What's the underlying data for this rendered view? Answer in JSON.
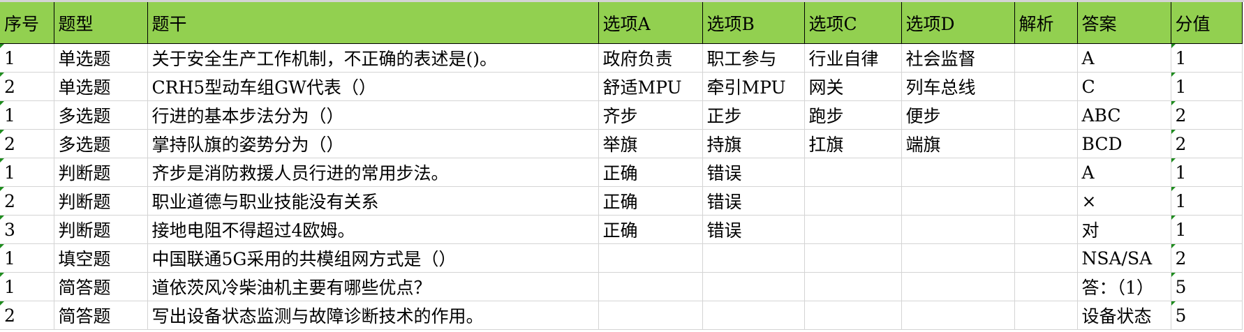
{
  "headers": [
    "序号",
    "题型",
    "题干",
    "选项A",
    "选项B",
    "选项C",
    "选项D",
    "解析",
    "答案",
    "分值"
  ],
  "rows": [
    [
      "1",
      "单选题",
      "关于安全生产工作机制，不正确的表述是()。",
      "政府负责",
      "职工参与",
      "行业自律",
      "社会监督",
      "",
      "A",
      "1"
    ],
    [
      "2",
      "单选题",
      "CRH5型动车组GW代表（）",
      "舒适MPU",
      "牵引MPU",
      "网关",
      "列车总线",
      "",
      "C",
      "1"
    ],
    [
      "1",
      "多选题",
      "行进的基本步法分为（）",
      "齐步",
      "正步",
      "跑步",
      "便步",
      "",
      "ABC",
      "2"
    ],
    [
      "2",
      "多选题",
      "掌持队旗的姿势分为（）",
      "举旗",
      "持旗",
      "扛旗",
      "端旗",
      "",
      "BCD",
      "2"
    ],
    [
      "1",
      "判断题",
      "齐步是消防救援人员行进的常用步法。",
      "正确",
      "错误",
      "",
      "",
      "",
      "A",
      "1"
    ],
    [
      "2",
      "判断题",
      "职业道德与职业技能没有关系",
      "正确",
      "错误",
      "",
      "",
      "",
      "×",
      "1"
    ],
    [
      "3",
      "判断题",
      "接地电阻不得超过4欧姆。",
      "正确",
      "错误",
      "",
      "",
      "",
      "对",
      "1"
    ],
    [
      "1",
      "填空题",
      "中国联通5G采用的共模组网方式是（）",
      "",
      "",
      "",
      "",
      "",
      "NSA/SA",
      "2"
    ],
    [
      "1",
      "简答题",
      "道依茨风冷柴油机主要有哪些优点？",
      "",
      "",
      "",
      "",
      "",
      "答：（1）",
      "5"
    ],
    [
      "2",
      "简答题",
      "写出设备状态监测与故障诊断技术的作用。",
      "",
      "",
      "",
      "",
      "",
      "设备状态",
      "5"
    ]
  ],
  "colors": {
    "header_bg": "#92d050",
    "grid": "#d4d4d4",
    "error_indicator": "#1e8c1e"
  }
}
